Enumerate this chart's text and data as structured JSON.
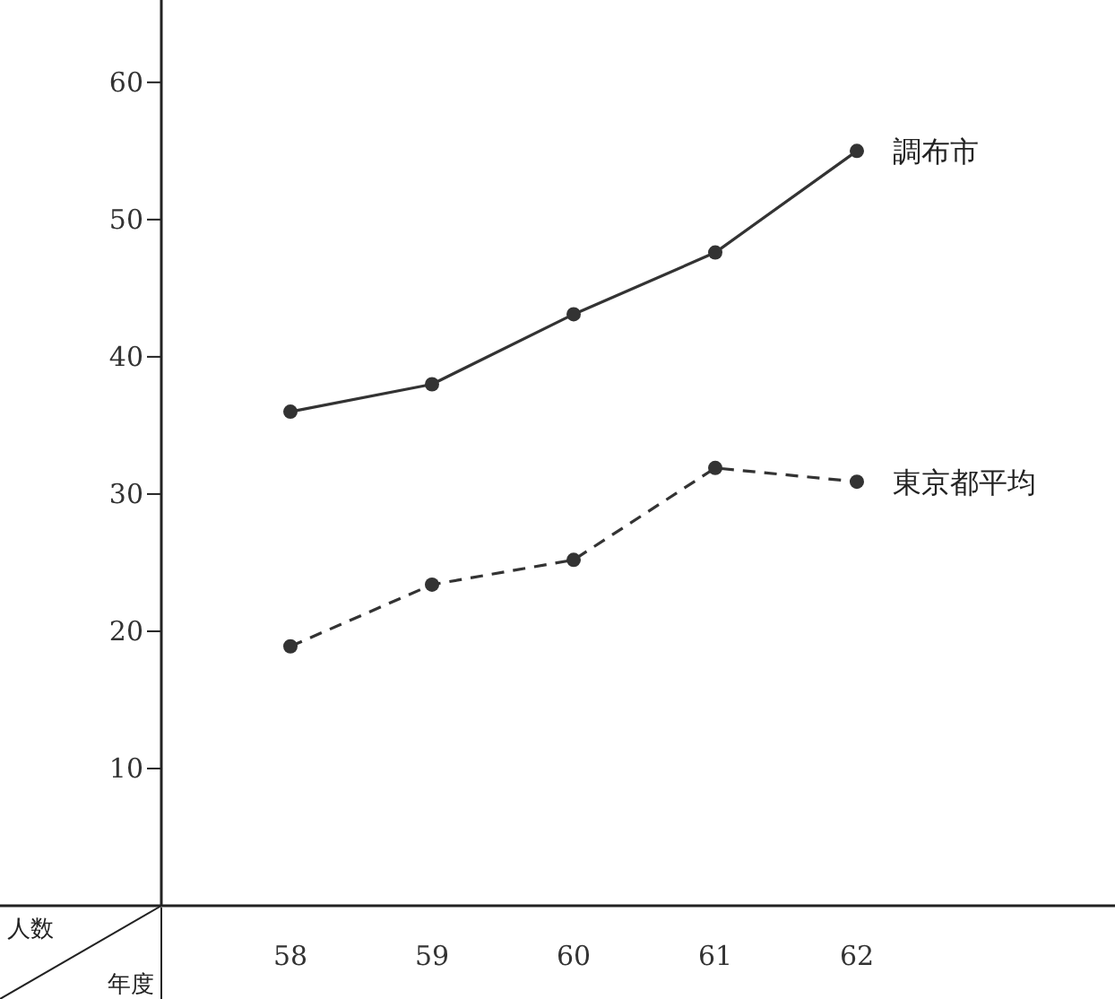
{
  "chart_data": {
    "type": "line",
    "xlabel": "年度",
    "ylabel": "人数",
    "marker": "circle",
    "categories": [
      "58",
      "59",
      "60",
      "61",
      "62"
    ],
    "ylim": [
      0,
      66
    ],
    "yticks": [
      10,
      20,
      30,
      40,
      50,
      60
    ],
    "series": [
      {
        "name": "調布市",
        "color": "#333333",
        "line_style": "solid",
        "values": [
          36.0,
          38.0,
          43.1,
          47.6,
          55.0
        ]
      },
      {
        "name": "東京都平均",
        "color": "#333333",
        "line_style": "dashed",
        "values": [
          18.9,
          23.4,
          25.2,
          31.9,
          30.9
        ]
      }
    ]
  }
}
